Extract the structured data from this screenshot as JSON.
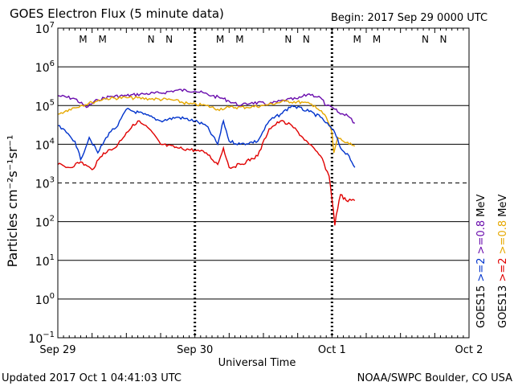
{
  "header": {
    "title": "GOES Electron Flux (5 minute data)",
    "begin": "Begin: 2017 Sep 29 0000 UTC"
  },
  "footer": {
    "updated": "Updated 2017 Oct  1 04:41:03 UTC",
    "credit": "NOAA/SWPC Boulder, CO USA"
  },
  "colors": {
    "goes15_2mev": "#0033cc",
    "goes15_08mev": "#6a0dad",
    "goes13_2mev": "#e00000",
    "goes13_08mev": "#e6a800",
    "noon_marker": "#cc0000",
    "midnight_marker": "#0033aa"
  },
  "chart_data": {
    "type": "line",
    "title": "GOES Electron Flux (5 minute data)",
    "xlabel": "Universal Time",
    "ylabel": "Particles cm⁻²s⁻¹sr⁻¹",
    "y_scale": "log",
    "ylim": [
      0.1,
      10000000
    ],
    "xlim": [
      "2017-09-29 00:00",
      "2017-10-02 00:00"
    ],
    "x_ticks": [
      "Sep 29",
      "Sep 30",
      "Oct 1",
      "Oct 2"
    ],
    "y_ticks": [
      {
        "base": "10",
        "exp": "7",
        "value": 10000000
      },
      {
        "base": "10",
        "exp": "6",
        "value": 1000000
      },
      {
        "base": "10",
        "exp": "5",
        "value": 100000
      },
      {
        "base": "10",
        "exp": "4",
        "value": 10000
      },
      {
        "base": "10",
        "exp": "3",
        "value": 1000
      },
      {
        "base": "10",
        "exp": "2",
        "value": 100
      },
      {
        "base": "10",
        "exp": "1",
        "value": 10
      },
      {
        "base": "10",
        "exp": "0",
        "value": 1
      },
      {
        "base": "10",
        "exp": "−1",
        "value": 0.1
      }
    ],
    "grid": "solid horizontal lines at each decade; dashed line at 10^3",
    "threshold_line": 1000,
    "markers": [
      {
        "label": "M",
        "x": "2017-09-29 04:25",
        "type": "noon"
      },
      {
        "label": "M",
        "x": "2017-09-29 07:50",
        "type": "midnight"
      },
      {
        "label": "N",
        "x": "2017-09-29 16:20",
        "type": "noon"
      },
      {
        "label": "N",
        "x": "2017-09-29 19:30",
        "type": "midnight"
      },
      {
        "label": "M",
        "x": "2017-09-30 04:25",
        "type": "noon"
      },
      {
        "label": "M",
        "x": "2017-09-30 07:50",
        "type": "midnight"
      },
      {
        "label": "N",
        "x": "2017-09-30 16:20",
        "type": "noon"
      },
      {
        "label": "N",
        "x": "2017-09-30 19:30",
        "type": "midnight"
      },
      {
        "label": "M",
        "x": "2017-10-01 04:25",
        "type": "noon"
      },
      {
        "label": "M",
        "x": "2017-10-01 07:50",
        "type": "midnight"
      },
      {
        "label": "N",
        "x": "2017-10-01 16:20",
        "type": "noon"
      },
      {
        "label": "N",
        "x": "2017-10-01 19:30",
        "type": "midnight"
      }
    ],
    "legend": {
      "placement": "right, vertical",
      "col1": [
        {
          "text": "GOES15",
          "color": "#000000"
        },
        {
          "text": ">=2",
          "color": "#0033cc"
        },
        {
          "text": ">=0.8",
          "color": "#6a0dad"
        },
        {
          "text": "MeV",
          "color": "#000000"
        }
      ],
      "col2": [
        {
          "text": "GOES13",
          "color": "#000000"
        },
        {
          "text": ">=2",
          "color": "#e00000"
        },
        {
          "text": ">=0.8",
          "color": "#e6a800"
        },
        {
          "text": "MeV",
          "color": "#000000"
        }
      ]
    },
    "series": [
      {
        "color": "#6a0dad",
        "points": [
          [
            "2017-09-29 00:00",
            180000
          ],
          [
            "2017-09-29 03:00",
            150000
          ],
          [
            "2017-09-29 05:00",
            90000
          ],
          [
            "2017-09-29 07:00",
            140000
          ],
          [
            "2017-09-29 09:00",
            170000
          ],
          [
            "2017-09-29 12:00",
            180000
          ],
          [
            "2017-09-29 15:00",
            200000
          ],
          [
            "2017-09-29 18:00",
            210000
          ],
          [
            "2017-09-29 21:00",
            250000
          ],
          [
            "2017-09-30 00:00",
            240000
          ],
          [
            "2017-09-30 03:00",
            180000
          ],
          [
            "2017-09-30 05:00",
            150000
          ],
          [
            "2017-09-30 06:00",
            130000
          ],
          [
            "2017-09-30 08:00",
            100000
          ],
          [
            "2017-09-30 10:00",
            120000
          ],
          [
            "2017-09-30 13:00",
            110000
          ],
          [
            "2017-09-30 16:00",
            140000
          ],
          [
            "2017-09-30 18:00",
            150000
          ],
          [
            "2017-09-30 20:00",
            200000
          ],
          [
            "2017-09-30 22:00",
            160000
          ],
          [
            "2017-09-30 23:00",
            100000
          ],
          [
            "2017-10-01 00:30",
            80000
          ],
          [
            "2017-10-01 01:30",
            60000
          ],
          [
            "2017-10-01 02:30",
            60000
          ],
          [
            "2017-10-01 04:00",
            35000
          ]
        ]
      },
      {
        "color": "#e6a800",
        "points": [
          [
            "2017-09-29 00:00",
            60000
          ],
          [
            "2017-09-29 02:00",
            80000
          ],
          [
            "2017-09-29 04:00",
            100000
          ],
          [
            "2017-09-29 06:00",
            120000
          ],
          [
            "2017-09-29 08:00",
            150000
          ],
          [
            "2017-09-29 12:00",
            160000
          ],
          [
            "2017-09-29 16:00",
            150000
          ],
          [
            "2017-09-29 20:00",
            140000
          ],
          [
            "2017-09-29 23:00",
            110000
          ],
          [
            "2017-09-30 02:00",
            100000
          ],
          [
            "2017-09-30 04:00",
            80000
          ],
          [
            "2017-09-30 06:00",
            90000
          ],
          [
            "2017-09-30 09:00",
            90000
          ],
          [
            "2017-09-30 12:00",
            100000
          ],
          [
            "2017-09-30 16:00",
            130000
          ],
          [
            "2017-09-30 19:00",
            120000
          ],
          [
            "2017-09-30 21:00",
            100000
          ],
          [
            "2017-09-30 23:00",
            50000
          ],
          [
            "2017-10-01 00:00",
            20000
          ],
          [
            "2017-10-01 00:20",
            6000
          ],
          [
            "2017-10-01 01:00",
            15000
          ],
          [
            "2017-10-01 02:00",
            12000
          ],
          [
            "2017-10-01 03:00",
            10000
          ],
          [
            "2017-10-01 04:00",
            9000
          ]
        ]
      },
      {
        "color": "#0033cc",
        "points": [
          [
            "2017-09-29 00:00",
            30000
          ],
          [
            "2017-09-29 01:30",
            20000
          ],
          [
            "2017-09-29 03:00",
            12000
          ],
          [
            "2017-09-29 04:00",
            4000
          ],
          [
            "2017-09-29 05:30",
            15000
          ],
          [
            "2017-09-29 07:00",
            6000
          ],
          [
            "2017-09-29 09:00",
            20000
          ],
          [
            "2017-09-29 10:30",
            30000
          ],
          [
            "2017-09-29 12:00",
            80000
          ],
          [
            "2017-09-29 15:00",
            60000
          ],
          [
            "2017-09-29 18:00",
            40000
          ],
          [
            "2017-09-29 21:00",
            50000
          ],
          [
            "2017-09-30 00:00",
            40000
          ],
          [
            "2017-09-30 02:00",
            30000
          ],
          [
            "2017-09-30 04:00",
            10000
          ],
          [
            "2017-09-30 05:00",
            40000
          ],
          [
            "2017-09-30 06:00",
            12000
          ],
          [
            "2017-09-30 08:00",
            10000
          ],
          [
            "2017-09-30 11:00",
            12000
          ],
          [
            "2017-09-30 13:00",
            40000
          ],
          [
            "2017-09-30 15:00",
            60000
          ],
          [
            "2017-09-30 17:00",
            100000
          ],
          [
            "2017-09-30 20:00",
            70000
          ],
          [
            "2017-09-30 22:00",
            50000
          ],
          [
            "2017-09-30 23:30",
            30000
          ],
          [
            "2017-10-01 00:30",
            20000
          ],
          [
            "2017-10-01 01:30",
            8000
          ],
          [
            "2017-10-01 03:00",
            5000
          ],
          [
            "2017-10-01 04:00",
            2500
          ]
        ]
      },
      {
        "color": "#e00000",
        "points": [
          [
            "2017-09-29 00:00",
            3000
          ],
          [
            "2017-09-29 02:00",
            2500
          ],
          [
            "2017-09-29 04:00",
            3500
          ],
          [
            "2017-09-29 06:00",
            2200
          ],
          [
            "2017-09-29 08:00",
            6000
          ],
          [
            "2017-09-29 10:00",
            8000
          ],
          [
            "2017-09-29 12:00",
            20000
          ],
          [
            "2017-09-29 14:00",
            40000
          ],
          [
            "2017-09-29 16:00",
            25000
          ],
          [
            "2017-09-29 18:00",
            10000
          ],
          [
            "2017-09-29 21:00",
            8000
          ],
          [
            "2017-09-30 00:00",
            7000
          ],
          [
            "2017-09-30 02:00",
            6000
          ],
          [
            "2017-09-30 04:00",
            3000
          ],
          [
            "2017-09-30 05:00",
            8000
          ],
          [
            "2017-09-30 06:00",
            2500
          ],
          [
            "2017-09-30 08:00",
            3000
          ],
          [
            "2017-09-30 11:00",
            5000
          ],
          [
            "2017-09-30 13:00",
            25000
          ],
          [
            "2017-09-30 15:00",
            40000
          ],
          [
            "2017-09-30 17:00",
            30000
          ],
          [
            "2017-09-30 20:00",
            10000
          ],
          [
            "2017-09-30 22:00",
            5000
          ],
          [
            "2017-09-30 23:30",
            1500
          ],
          [
            "2017-10-01 00:15",
            200
          ],
          [
            "2017-10-01 00:30",
            80
          ],
          [
            "2017-10-01 00:45",
            150
          ],
          [
            "2017-10-01 01:30",
            500
          ],
          [
            "2017-10-01 02:30",
            350
          ],
          [
            "2017-10-01 04:00",
            350
          ]
        ]
      }
    ]
  }
}
